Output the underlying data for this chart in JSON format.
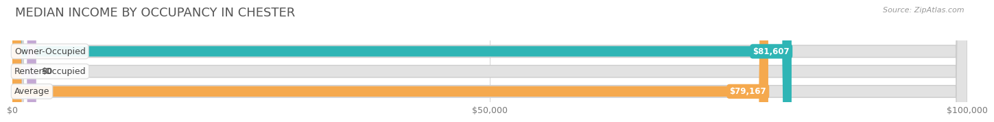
{
  "title": "MEDIAN INCOME BY OCCUPANCY IN CHESTER",
  "source": "Source: ZipAtlas.com",
  "categories": [
    "Owner-Occupied",
    "Renter-Occupied",
    "Average"
  ],
  "values": [
    81607,
    0,
    79167
  ],
  "bar_colors": [
    "#2fb5b5",
    "#c4a8d4",
    "#f5a94e"
  ],
  "bar_labels": [
    "$81,607",
    "$0",
    "$79,167"
  ],
  "xlim": [
    0,
    100000
  ],
  "xticks": [
    0,
    50000,
    100000
  ],
  "xticklabels": [
    "$0",
    "$50,000",
    "$100,000"
  ],
  "track_color": "#e2e2e2",
  "track_border_color": "#d0d0d0",
  "background_color": "#ffffff",
  "title_fontsize": 13,
  "label_fontsize": 9,
  "value_fontsize": 8.5,
  "tick_fontsize": 9
}
